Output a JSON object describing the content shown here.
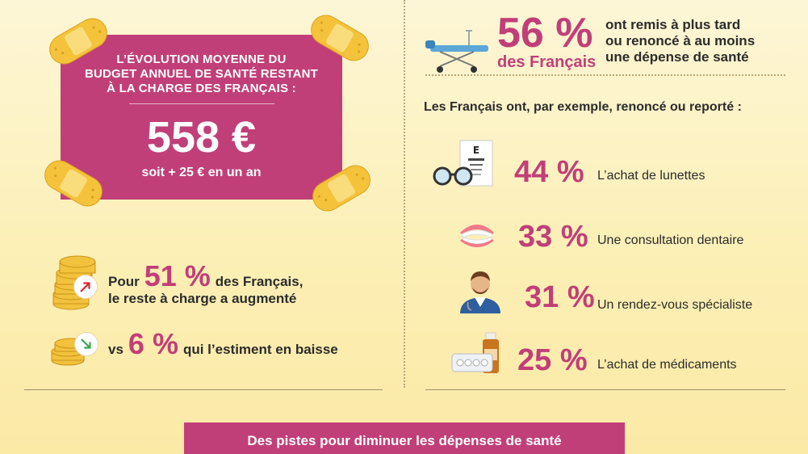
{
  "budget": {
    "title": "L’ÉVOLUTION MOYENNE DU\nBUDGET ANNUEL DE SANTÉ RESTANT\nÀ LA CHARGE DES FRANÇAIS :",
    "value": "558 €",
    "subtitle": "soit + 25 € en un an"
  },
  "increase": {
    "prefix": "Pour",
    "percent": "51 %",
    "suffix": "des Français,",
    "line2": "le reste à charge a augmenté"
  },
  "decrease": {
    "prefix": "vs",
    "percent": "6 %",
    "suffix": "qui l’estiment en baisse"
  },
  "headline": {
    "percent": "56 %",
    "who": "des Français",
    "text": "ont remis à plus tard\nou renoncé à au moins\nune dépense de santé"
  },
  "intro": "Les Français ont, par exemple, renoncé ou reporté :",
  "items": [
    {
      "percent": "44 %",
      "label": "L’achat de lunettes",
      "icon": "glasses-eye-chart-icon"
    },
    {
      "percent": "33 %",
      "label": "Une consultation dentaire",
      "icon": "dentures-icon"
    },
    {
      "percent": "31 %",
      "label": "Un rendez-vous spécialiste",
      "icon": "doctor-icon"
    },
    {
      "percent": "25 %",
      "label": "L’achat de médicaments",
      "icon": "medicine-icon"
    }
  ],
  "footer": "Des pistes pour diminuer les dépenses de santé",
  "colors": {
    "accent": "#c13f78",
    "background": "#fcefb4",
    "bandage": "#f5c33b"
  }
}
